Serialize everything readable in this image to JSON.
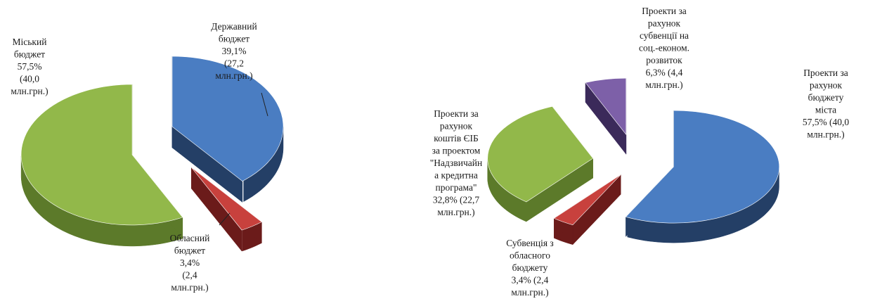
{
  "chart_data": [
    {
      "type": "pie",
      "style": "3d-exploded",
      "slices": [
        {
          "key": "derzh",
          "label_lines": [
            "Державний",
            "бюджет",
            "39,1%",
            "(27,2",
            "млн.грн.)"
          ],
          "percent": 39.1,
          "value_mln_uah": 27.2,
          "color": "#4a7dc2",
          "side_color": "#243f66"
        },
        {
          "key": "oblast",
          "label_lines": [
            "Обласний",
            "бюджет",
            "3,4%",
            "(2,4",
            "млн.грн.)"
          ],
          "percent": 3.4,
          "value_mln_uah": 2.4,
          "color": "#c8413d",
          "side_color": "#6b1b1a"
        },
        {
          "key": "misk",
          "label_lines": [
            "Міський",
            "бюджет",
            "57,5%",
            "(40,0",
            "млн.грн.)"
          ],
          "percent": 57.5,
          "value_mln_uah": 40.0,
          "color": "#92b84a",
          "side_color": "#5c7a2a"
        }
      ]
    },
    {
      "type": "pie",
      "style": "3d-exploded",
      "slices": [
        {
          "key": "budget_mista",
          "label_lines": [
            "Проекти за",
            "рахунок",
            "бюджету",
            "міста",
            "57,5%  (40,0",
            "млн.грн.)"
          ],
          "percent": 57.5,
          "value_mln_uah": 40.0,
          "color": "#4a7dc2",
          "side_color": "#243f66"
        },
        {
          "key": "subventsia_oblast",
          "label_lines": [
            "Субвенція з",
            "обласного",
            "бюджету",
            "3,4% (2,4",
            "млн.грн.)"
          ],
          "percent": 3.4,
          "value_mln_uah": 2.4,
          "color": "#c8413d",
          "side_color": "#6b1b1a"
        },
        {
          "key": "cib",
          "label_lines": [
            "Проекти за",
            "рахунок",
            "коштів ЄІБ",
            "за проектом",
            "\"Надзвичайн",
            "а кредитна",
            "програма\"",
            "32,8% (22,7",
            "млн.грн.)"
          ],
          "percent": 32.8,
          "value_mln_uah": 22.7,
          "color": "#92b84a",
          "side_color": "#5c7a2a"
        },
        {
          "key": "subventsii_rozvytok",
          "label_lines": [
            "Проекти за",
            "рахунок",
            "субвенції на",
            "соц.-економ.",
            "розвиток",
            "6,3% (4,4",
            "млн.грн.)"
          ],
          "percent": 6.3,
          "value_mln_uah": 4.4,
          "color": "#7d60a8",
          "side_color": "#3b2a5a"
        }
      ]
    }
  ]
}
